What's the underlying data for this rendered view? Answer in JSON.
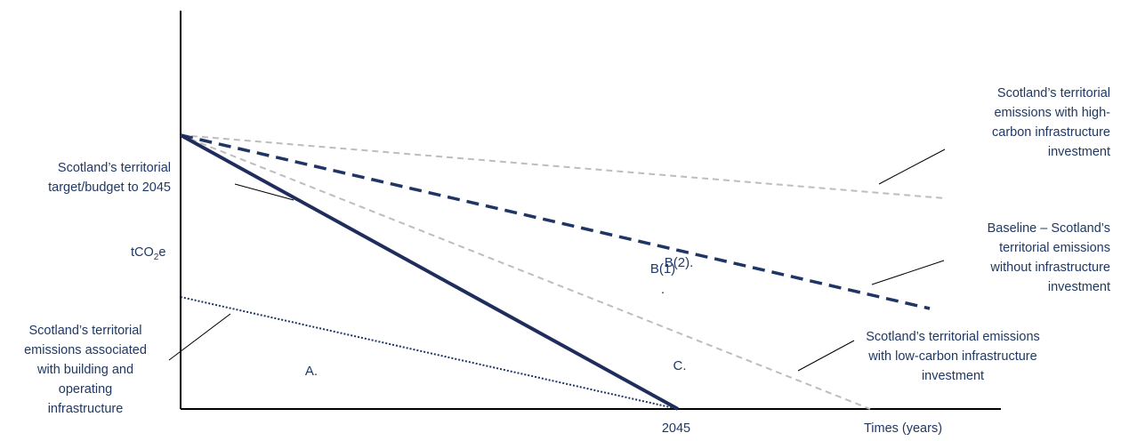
{
  "colors": {
    "axis": "#000000",
    "target_line": "#1f2d5c",
    "baseline_line": "#1f3564",
    "high_carbon_line": "#bdbdbd",
    "low_carbon_line": "#bdbdbd",
    "building_line": "#1f3564",
    "leader": "#000000",
    "text": "#1f3864"
  },
  "axes": {
    "y_label_prefix": "tCO",
    "y_label_sub": "2",
    "y_label_suffix": "e",
    "x_tick": "2045",
    "x_label": "Times (years)"
  },
  "zones": {
    "a": "A.",
    "b1": "B(1)",
    "b1_dot": ".",
    "b2": "B(2).",
    "c": "C."
  },
  "labels": {
    "target": [
      "Scotland’s territorial",
      "target/budget to 2045"
    ],
    "building": [
      "Scotland’s territorial",
      "emissions associated",
      "with building and",
      "operating",
      "infrastructure"
    ],
    "high_carbon": [
      "Scotland’s territorial",
      "emissions with high-",
      "carbon infrastructure",
      "investment"
    ],
    "baseline": [
      "Baseline – Scotland’s",
      "territorial emissions",
      "without infrastructure",
      "investment"
    ],
    "low_carbon": [
      "Scotland’s territorial emissions",
      "with low-carbon infrastructure",
      "investment"
    ]
  }
}
